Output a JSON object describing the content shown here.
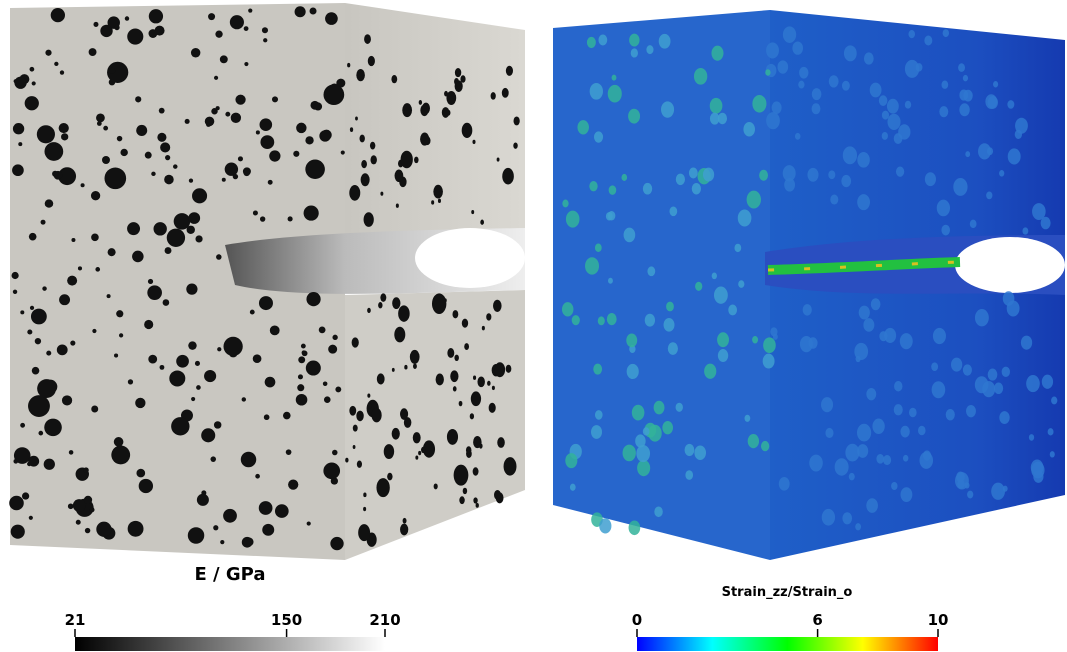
{
  "panels": [
    {
      "colorbar": {
        "title": "E / GPa",
        "range": [
          21,
          210
        ],
        "ticks": [
          21,
          150,
          210
        ],
        "colors": [
          "#000000",
          "#ffffff"
        ]
      }
    },
    {
      "colorbar": {
        "title": "Strain_zz/Strain_o",
        "range": [
          0,
          10
        ],
        "ticks": [
          0,
          6,
          10
        ],
        "colors": [
          "#0000ff",
          "#00ffff",
          "#00ff00",
          "#ffff00",
          "#ff0000"
        ]
      }
    }
  ]
}
